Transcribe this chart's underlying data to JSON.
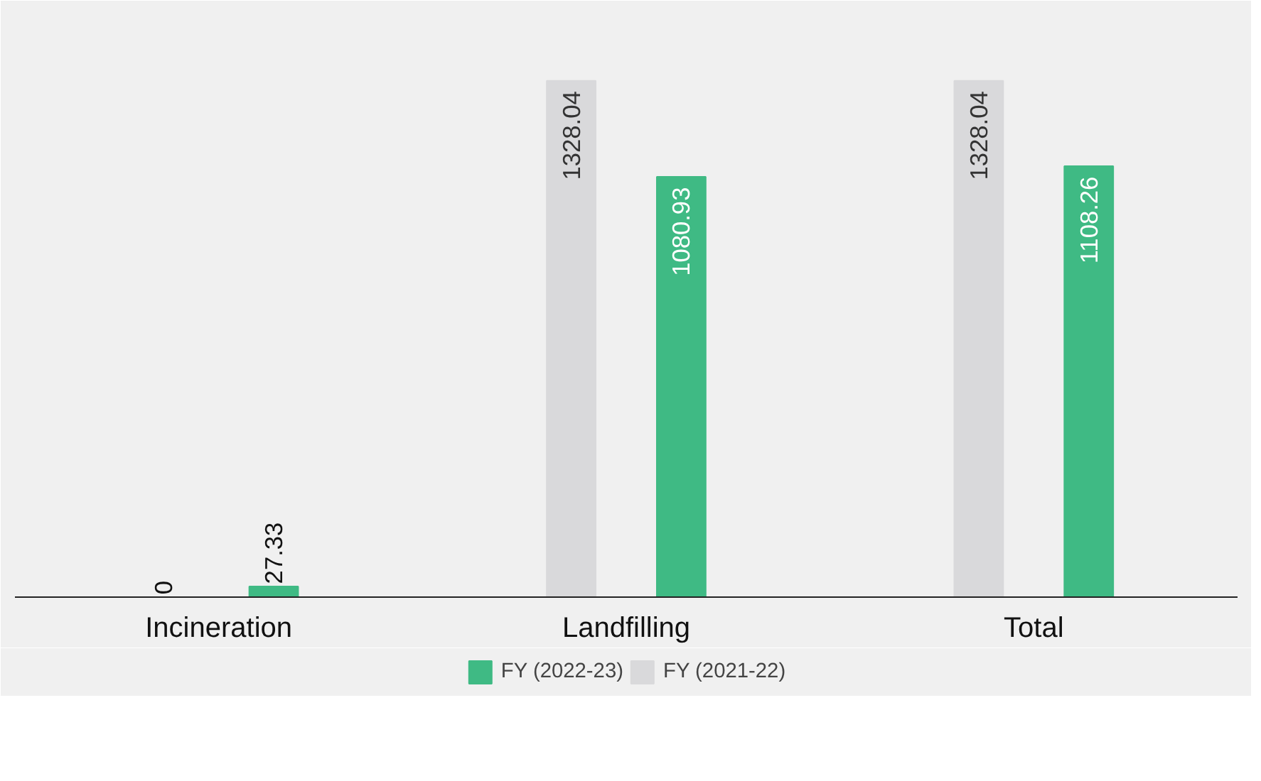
{
  "chart_data": {
    "type": "bar",
    "categories": [
      "Incineration",
      "Landfilling",
      "Total"
    ],
    "series": [
      {
        "name": "FY (2021-22)",
        "color": "#d9d9db",
        "values": [
          0,
          1328.04,
          1328.04
        ]
      },
      {
        "name": "FY (2022-23)",
        "color": "#3fba84",
        "values": [
          27.33,
          1080.93,
          1108.26
        ]
      }
    ],
    "data_labels": true,
    "legend": "bottom",
    "grid": false
  }
}
